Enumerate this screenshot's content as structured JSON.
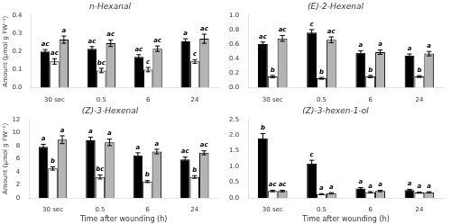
{
  "chart_data": [
    {
      "type": "bar",
      "title": "n-Hexanal",
      "categories": [
        "30 sec",
        "0.5",
        "6",
        "24"
      ],
      "ylabel": "Amount (μmol g FW⁻¹)",
      "ylim": [
        0.0,
        0.4
      ],
      "yticks": [
        {
          "value": 0.0,
          "label": "0.0"
        },
        0.1,
        0.2,
        0.3,
        0.4
      ],
      "grid": false,
      "series": [
        {
          "color": "#000000",
          "values": [
            0.2,
            0.215,
            0.17,
            0.255
          ],
          "errors": [
            0.01,
            0.012,
            0.012,
            0.015
          ],
          "annotations": [
            "ac",
            "ac",
            "ac",
            "a"
          ]
        },
        {
          "color": "#ffffff",
          "values": [
            0.145,
            0.095,
            0.1,
            0.145
          ],
          "errors": [
            0.015,
            0.012,
            0.012,
            0.01
          ],
          "annotations": [
            "ac",
            "bc",
            "c",
            "c"
          ]
        },
        {
          "color": "#b4b4b4",
          "values": [
            0.265,
            0.245,
            0.215,
            0.27
          ],
          "errors": [
            0.02,
            0.018,
            0.015,
            0.025
          ],
          "annotations": [
            "a",
            "ac",
            "ac",
            "ac"
          ]
        }
      ]
    },
    {
      "type": "bar",
      "title": "(E)-2-Hexenal",
      "categories": [
        "30 sec",
        "0.5",
        "6",
        "24"
      ],
      "ylim": [
        0.0,
        1.0
      ],
      "yticks": [
        {
          "value": 0.0,
          "label": "0.0"
        },
        0.2,
        0.4,
        0.6,
        0.8,
        {
          "value": 1.0,
          "label": "1.0"
        }
      ],
      "grid": false,
      "series": [
        {
          "color": "#000000",
          "values": [
            0.6,
            0.76,
            0.48,
            0.44
          ],
          "errors": [
            0.03,
            0.04,
            0.03,
            0.025
          ],
          "annotations": [
            "ac",
            "c",
            "a",
            "a"
          ]
        },
        {
          "color": "#ffffff",
          "values": [
            0.155,
            0.13,
            0.155,
            0.155
          ],
          "errors": [
            0.015,
            0.012,
            0.015,
            0.012
          ],
          "annotations": [
            "b",
            "b",
            "b",
            "b"
          ]
        },
        {
          "color": "#b4b4b4",
          "values": [
            0.68,
            0.66,
            0.49,
            0.47
          ],
          "errors": [
            0.04,
            0.04,
            0.03,
            0.03
          ],
          "annotations": [
            "ac",
            "ac",
            "a",
            "a"
          ]
        }
      ]
    },
    {
      "type": "bar",
      "title": "(Z)-3-Hexenal",
      "categories": [
        "30 sec",
        "0.5",
        "6",
        "24"
      ],
      "xlabel": "Time after wounding (h)",
      "ylabel": "Amount (μmol g FW⁻¹)",
      "ylim": [
        0.0,
        12.0
      ],
      "yticks": [
        0,
        2,
        4,
        6,
        8,
        10,
        12
      ],
      "grid": false,
      "series": [
        {
          "color": "#000000",
          "values": [
            7.8,
            8.8,
            6.5,
            5.9
          ],
          "errors": [
            0.4,
            0.5,
            0.4,
            0.35
          ],
          "annotations": [
            "a",
            "a",
            "a",
            "ac"
          ]
        },
        {
          "color": "#ffffff",
          "values": [
            4.5,
            3.2,
            2.5,
            3.2
          ],
          "errors": [
            0.25,
            0.3,
            0.15,
            0.2
          ],
          "annotations": [
            "b",
            "bc",
            "b",
            "b"
          ]
        },
        {
          "color": "#b4b4b4",
          "values": [
            8.9,
            8.5,
            7.1,
            6.9
          ],
          "errors": [
            0.6,
            0.5,
            0.35,
            0.3
          ],
          "annotations": [
            "a",
            "a",
            "a",
            "ac"
          ]
        }
      ]
    },
    {
      "type": "bar",
      "title": "(Z)-3-hexen-1-ol",
      "categories": [
        "30 sec",
        "0.5",
        "6",
        "24"
      ],
      "xlabel": "Time after wounding (h)",
      "ylim": [
        0.0,
        2.5
      ],
      "yticks": [
        {
          "value": 0.0,
          "label": "0.0"
        },
        0.5,
        {
          "value": 1.0,
          "label": "1.0"
        },
        1.5,
        {
          "value": 2.0,
          "label": "2.0"
        },
        2.5
      ],
      "grid": false,
      "series": [
        {
          "color": "#000000",
          "values": [
            1.9,
            1.1,
            0.3,
            0.25
          ],
          "errors": [
            0.15,
            0.1,
            0.03,
            0.025
          ],
          "annotations": [
            "b",
            "c",
            "a",
            "a"
          ]
        },
        {
          "color": "#ffffff",
          "values": [
            0.22,
            0.12,
            0.18,
            0.17
          ],
          "errors": [
            0.025,
            0.015,
            0.02,
            0.018
          ],
          "annotations": [
            "ac",
            "a",
            "a",
            "a"
          ]
        },
        {
          "color": "#b4b4b4",
          "values": [
            0.22,
            0.15,
            0.22,
            0.18
          ],
          "errors": [
            0.025,
            0.018,
            0.022,
            0.018
          ],
          "annotations": [
            "ac",
            "a",
            "a",
            "a"
          ]
        }
      ]
    }
  ]
}
